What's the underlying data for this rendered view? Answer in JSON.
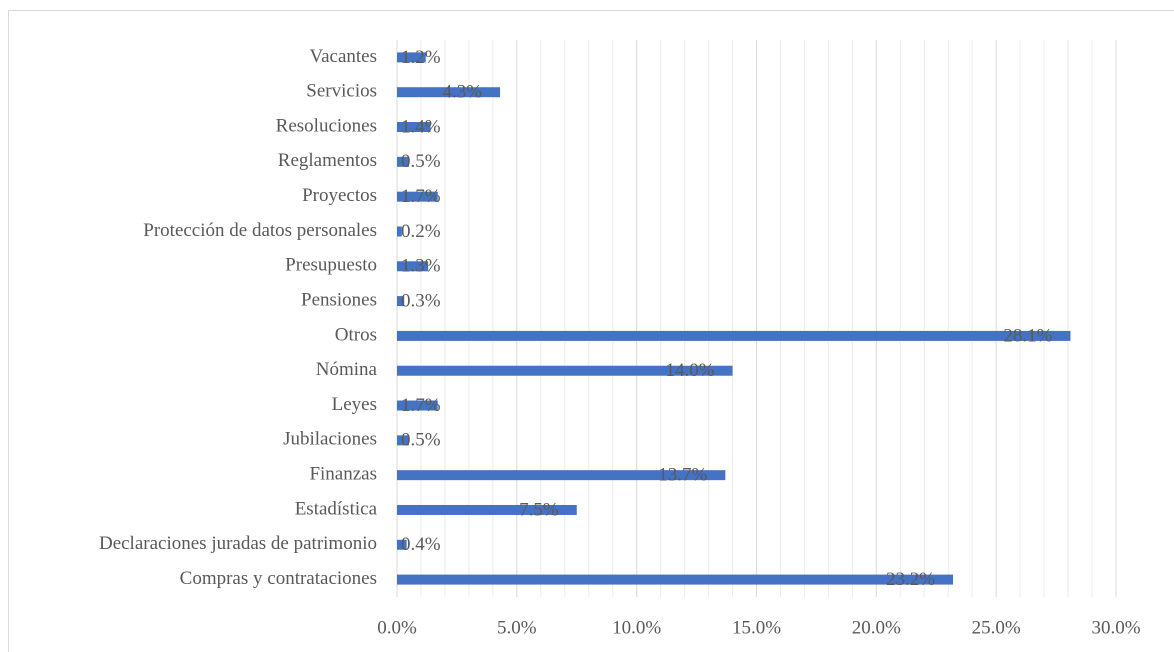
{
  "chart_data": {
    "type": "barh",
    "categories": [
      "Compras y contrataciones",
      "Declaraciones juradas de patrimonio",
      "Estadística",
      "Finanzas",
      "Jubilaciones",
      "Leyes",
      "Nómina",
      "Otros",
      "Pensiones",
      "Presupuesto",
      "Protección de datos personales",
      "Proyectos",
      "Reglamentos",
      "Resoluciones",
      "Servicios",
      "Vacantes"
    ],
    "values": [
      23.2,
      0.4,
      7.5,
      13.7,
      0.5,
      1.7,
      14.0,
      28.1,
      0.3,
      1.3,
      0.2,
      1.7,
      0.5,
      1.4,
      4.3,
      1.2
    ],
    "value_labels": [
      "23.2%",
      "0.4%",
      "7.5%",
      "13.7%",
      "0.5%",
      "1.7%",
      "14.0%",
      "28.1%",
      "0.3%",
      "1.3%",
      "0.2%",
      "1.7%",
      "0.5%",
      "1.4%",
      "4.3%",
      "1.2%"
    ],
    "color": "#4472c4",
    "xlim": [
      0,
      30
    ],
    "xticks": [
      {
        "value": 0,
        "label": "0.0%"
      },
      {
        "value": 5,
        "label": "5.0%"
      },
      {
        "value": 10,
        "label": "10.0%"
      },
      {
        "value": 15,
        "label": "15.0%"
      },
      {
        "value": 20,
        "label": "20.0%"
      },
      {
        "value": 25,
        "label": "25.0%"
      },
      {
        "value": 30,
        "label": "30.0%"
      }
    ],
    "grid": true,
    "minor_grid": true
  }
}
